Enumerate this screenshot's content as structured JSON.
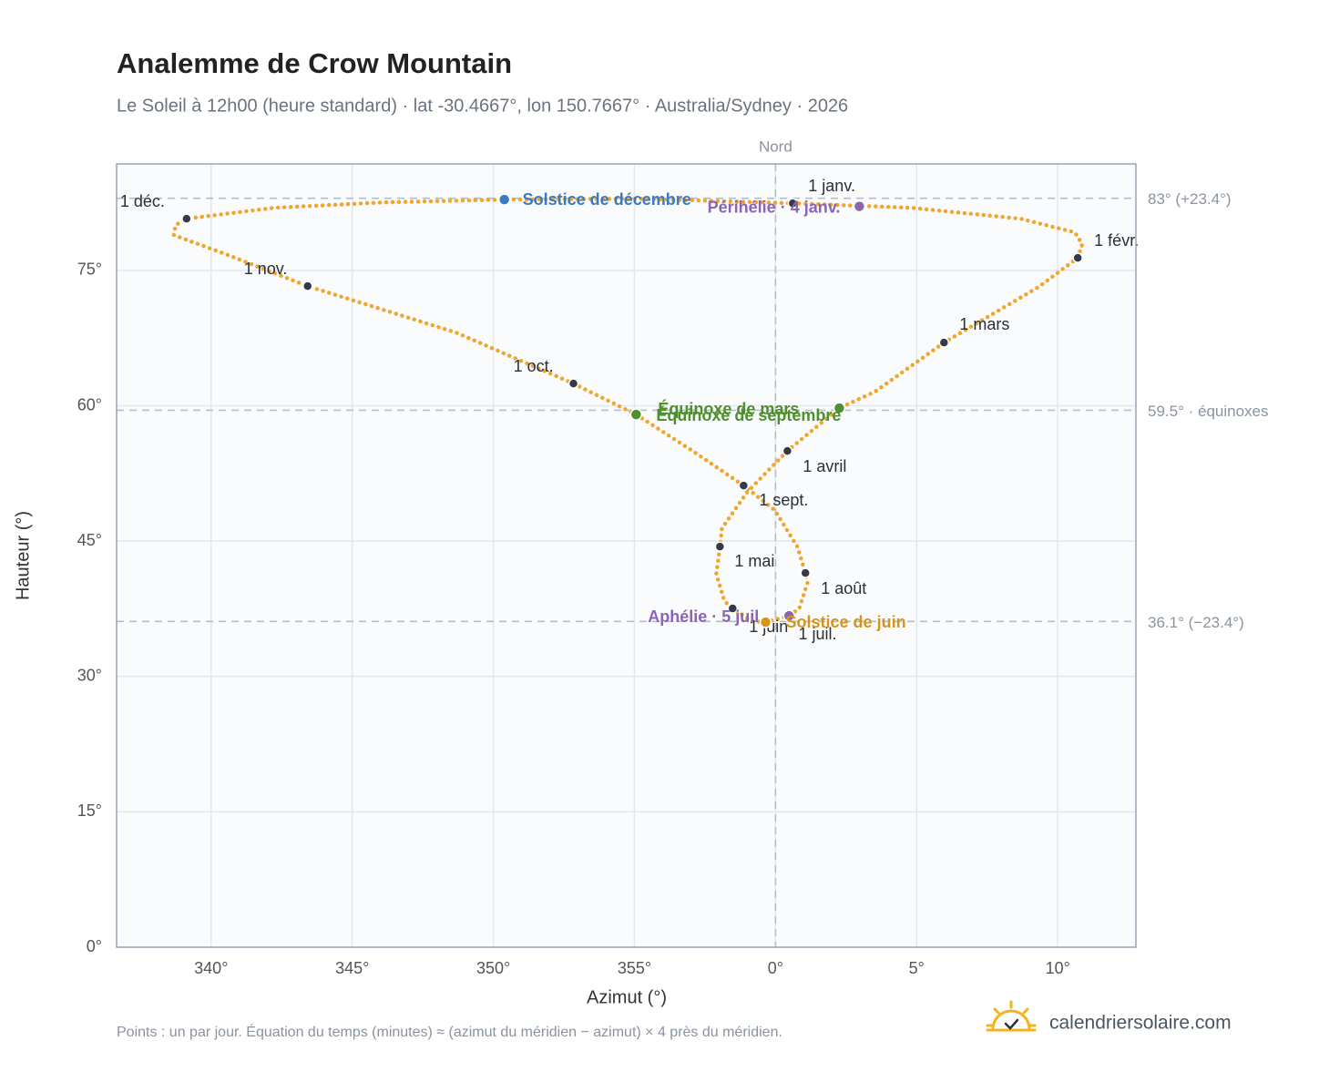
{
  "chart_data": {
    "type": "analemma",
    "title": "Analemme de Crow Mountain",
    "subtitle": "Le Soleil à 12h00 (heure standard) · lat -30.4667°, lon 150.7667° · Australia/Sydney · 2026",
    "x_label": "Azimut (°)",
    "y_label": "Hauteur (°)",
    "north_label": "Nord",
    "note": "Points : un par jour. Équation du temps (minutes) ≈ (azimut du méridien − azimut) × 4 près du méridien.",
    "brand": "calendriersolaire.com",
    "xlim": [
      -23.35,
      12.77
    ],
    "ylim": [
      0,
      86.8
    ],
    "xticks": [
      {
        "value": -20,
        "label": "340°"
      },
      {
        "value": -15,
        "label": "345°"
      },
      {
        "value": -10,
        "label": "350°"
      },
      {
        "value": -5,
        "label": "355°"
      },
      {
        "value": 0,
        "label": "0°"
      },
      {
        "value": 5,
        "label": "5°"
      },
      {
        "value": 10,
        "label": "10°"
      }
    ],
    "yticks": [
      {
        "value": 0,
        "label": "0°"
      },
      {
        "value": 15,
        "label": "15°"
      },
      {
        "value": 30,
        "label": "30°"
      },
      {
        "value": 45,
        "label": "45°"
      },
      {
        "value": 60,
        "label": "60°"
      },
      {
        "value": 75,
        "label": "75°"
      }
    ],
    "grid": true,
    "color": "#f2a52c",
    "reference_lines": [
      {
        "value": 83,
        "label": "83° (+23.4°)"
      },
      {
        "value": 59.5,
        "label": "59.5° · équinoxes"
      },
      {
        "value": 36.1,
        "label": "36.1° (−23.4°)"
      }
    ],
    "path": {
      "x": [
        0.61,
        4.81,
        8.68,
        10.61,
        10.87,
        10.71,
        9.32,
        5.97,
        3.52,
        2.26,
        0.42,
        -1.0,
        -1.9,
        -1.97,
        -2.1,
        -1.81,
        -1.52,
        -0.84,
        -0.35,
        0.48,
        0.84,
        1.13,
        1.06,
        0.77,
        -0.03,
        -1.13,
        -2.94,
        -4.94,
        -7.16,
        -11.32,
        -16.58,
        -19.39,
        -21.32,
        -21.26,
        -20.87,
        -17.77,
        -13.9,
        -9.61,
        -4.87,
        0.61
      ],
      "y": [
        82.44,
        81.94,
        80.73,
        79.21,
        77.9,
        76.39,
        73.16,
        67.0,
        61.55,
        59.74,
        55.0,
        50.45,
        46.42,
        44.4,
        41.37,
        38.35,
        37.54,
        36.13,
        36.02,
        36.73,
        37.54,
        40.36,
        41.47,
        44.4,
        48.44,
        51.16,
        55.0,
        59.03,
        62.46,
        68.11,
        73.26,
        76.69,
        78.91,
        80.02,
        80.73,
        81.94,
        82.54,
        82.85,
        82.95,
        82.44
      ]
    },
    "months": {
      "labels": [
        "1 janv.",
        "1 févr.",
        "1 mars",
        "1 avril",
        "1 mai",
        "1 juin",
        "1 juil.",
        "1 août",
        "1 sept.",
        "1 oct.",
        "1 nov.",
        "1 déc."
      ],
      "x": [
        0.61,
        10.71,
        5.97,
        0.42,
        -1.97,
        -1.52,
        -0.35,
        1.06,
        -1.13,
        -7.16,
        -16.58,
        -20.87
      ],
      "y": [
        82.44,
        76.39,
        67.0,
        55.0,
        44.4,
        37.54,
        36.02,
        41.47,
        51.16,
        62.46,
        73.26,
        80.73
      ],
      "color": "#343a46"
    },
    "events": [
      {
        "name": "Solstice de décembre",
        "x": -9.61,
        "y": 82.85,
        "color": "#3b7bbf"
      },
      {
        "name": "Périhélie · 4 janv.",
        "x": 2.97,
        "y": 82.1,
        "color": "#8b64b4"
      },
      {
        "name": "Équinoxe de mars",
        "x": 2.26,
        "y": 59.74,
        "color": "#4f8f2f"
      },
      {
        "name": "Équinoxe de septembre",
        "x": -4.94,
        "y": 59.03,
        "color": "#4f8f2f"
      },
      {
        "name": "Aphélie · 5 juil.",
        "x": 0.48,
        "y": 36.73,
        "color": "#8b64b4"
      },
      {
        "name": "Solstice de juin",
        "x": -0.35,
        "y": 36.02,
        "color": "#d4951c"
      }
    ]
  }
}
